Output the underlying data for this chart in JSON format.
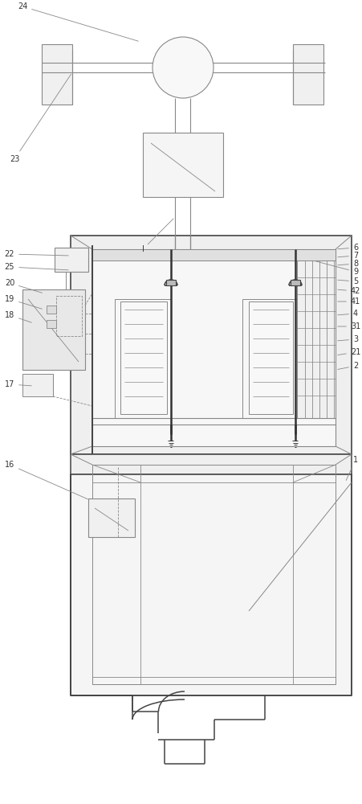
{
  "bg": "#ffffff",
  "lc": "#888888",
  "dc": "#444444",
  "bc": "#333333",
  "fw": 4.52,
  "fh": 10.0,
  "dpi": 100,
  "labels_right": [
    [
      "6",
      440,
      312
    ],
    [
      "7",
      440,
      322
    ],
    [
      "8",
      440,
      332
    ],
    [
      "9",
      440,
      342
    ],
    [
      "5",
      440,
      352
    ],
    [
      "42",
      440,
      364
    ],
    [
      "41",
      440,
      376
    ],
    [
      "4",
      440,
      390
    ],
    [
      "31",
      440,
      404
    ],
    [
      "3",
      440,
      418
    ],
    [
      "21",
      440,
      432
    ],
    [
      "2",
      440,
      448
    ]
  ],
  "labels_left": [
    [
      "22",
      10,
      320
    ],
    [
      "25",
      10,
      334
    ],
    [
      "20",
      10,
      355
    ],
    [
      "19",
      10,
      375
    ],
    [
      "18",
      10,
      393
    ],
    [
      "17",
      10,
      480
    ],
    [
      "16",
      10,
      580
    ]
  ]
}
